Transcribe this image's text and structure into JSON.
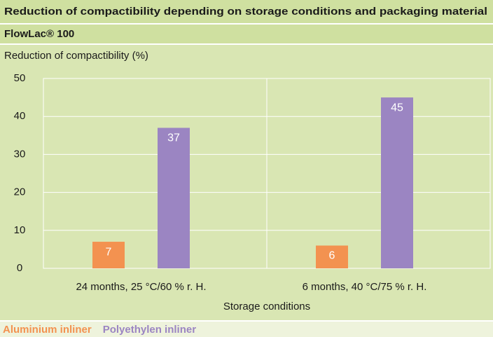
{
  "chart_data": {
    "type": "bar",
    "title": "Reduction of compactibility depending on storage conditions and packaging material",
    "subtitle": "FlowLac® 100",
    "y_label": "Reduction of compactibility (%)",
    "x_label": "Storage conditions",
    "categories": [
      "24 months, 25 °C/60 % r. H.",
      "6 months, 40 °C/75 % r. H."
    ],
    "series": [
      {
        "name": "Aluminium inliner",
        "color": "#f39250",
        "values": [
          7,
          6
        ]
      },
      {
        "name": "Polyethylen inliner",
        "color": "#9b85c2",
        "values": [
          37,
          45
        ]
      }
    ],
    "ylim": [
      0,
      50
    ],
    "yticks": [
      0,
      10,
      20,
      30,
      40,
      50
    ],
    "grid": true,
    "legend": "bottom"
  }
}
